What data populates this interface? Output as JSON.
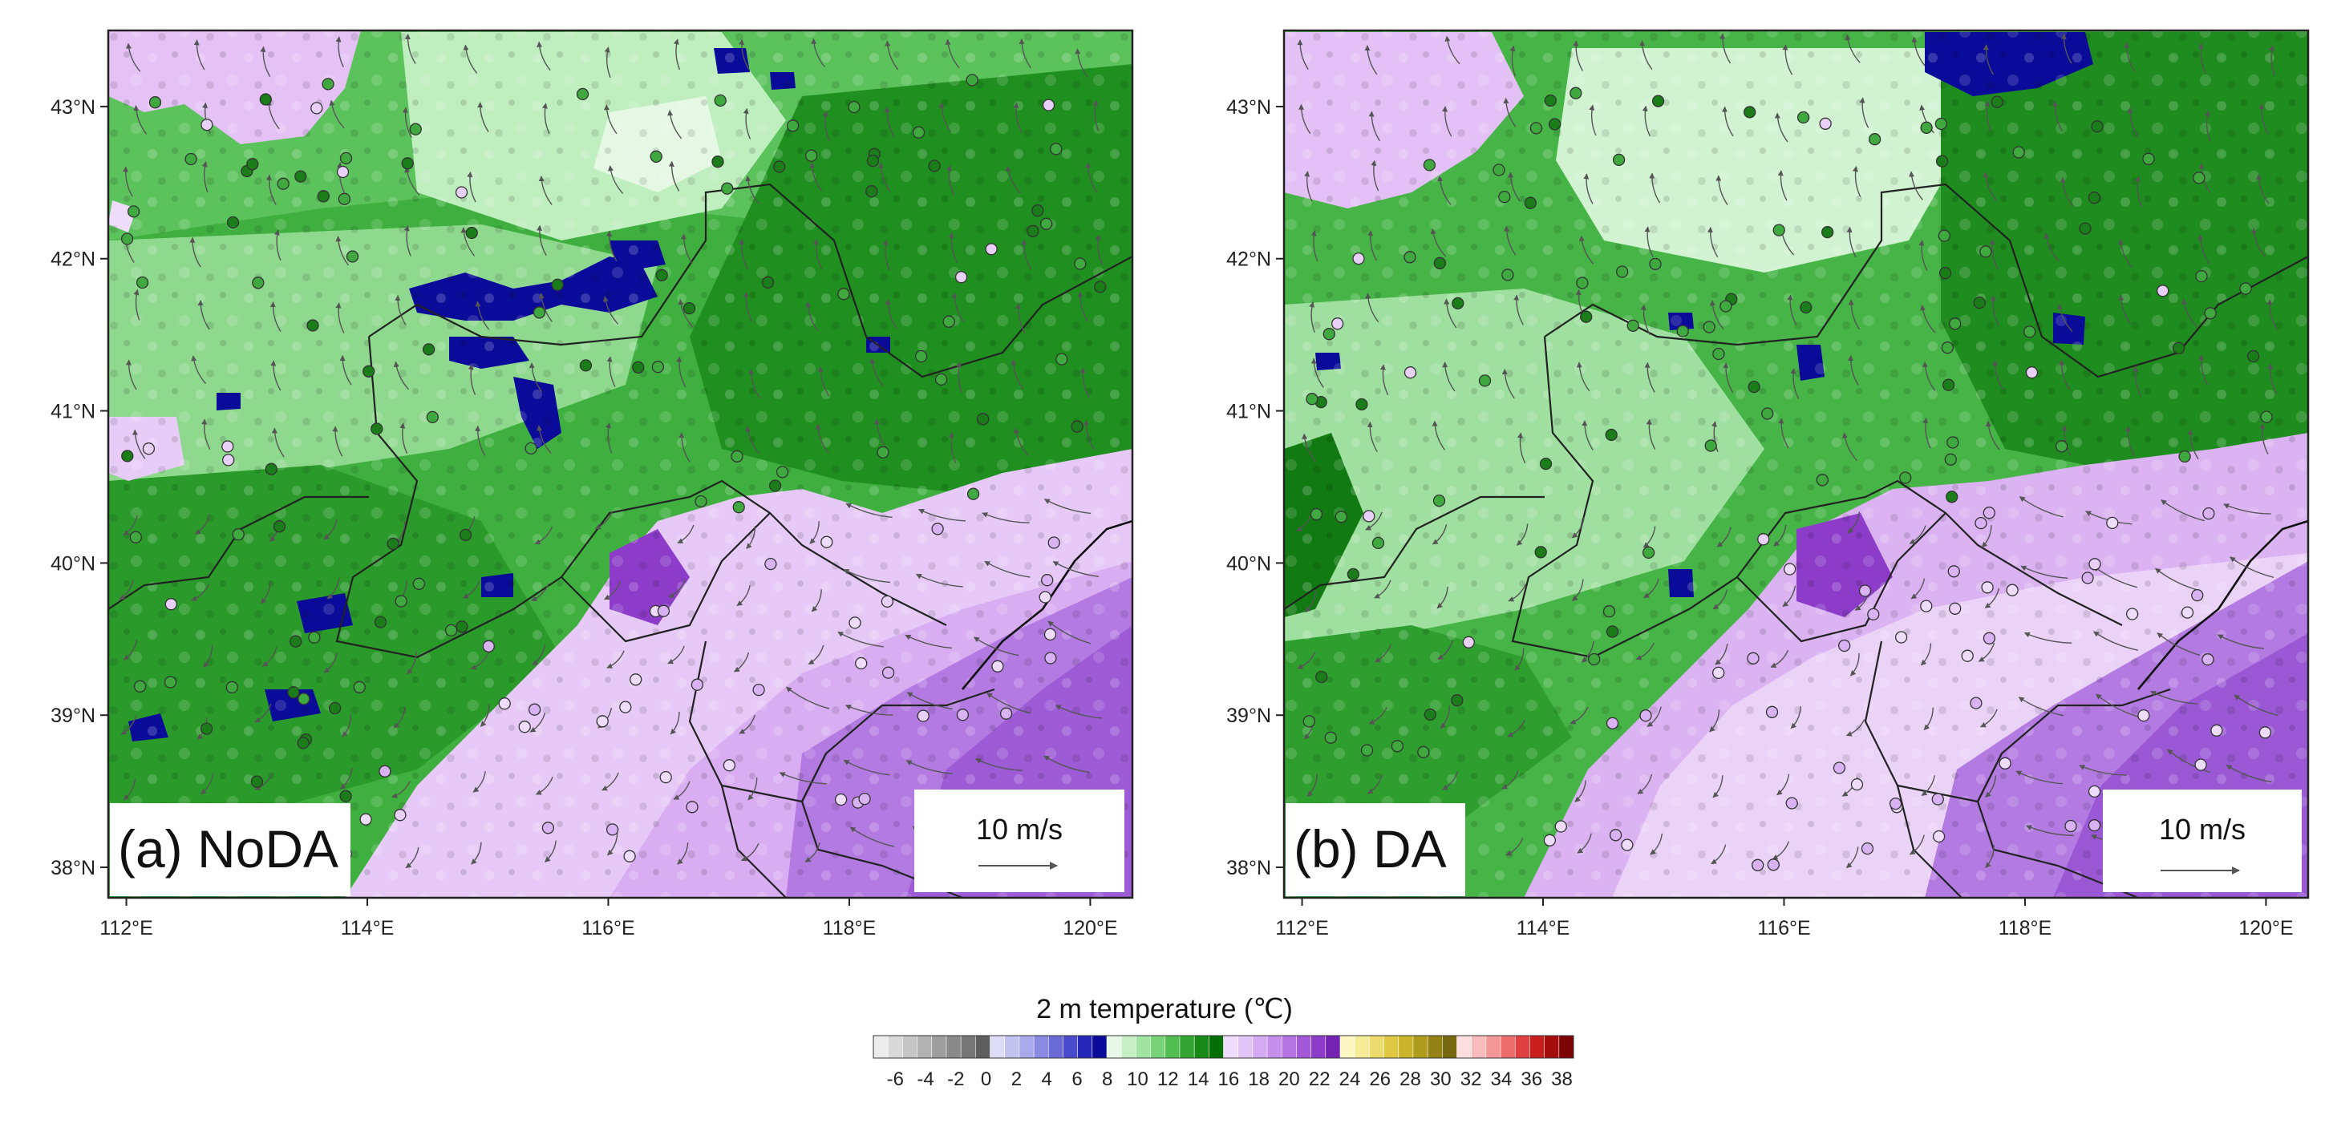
{
  "panels": [
    {
      "id": "a",
      "label": "(a) NoDA",
      "scale_label": "10 m/s"
    },
    {
      "id": "b",
      "label": "(b) DA",
      "scale_label": "10 m/s"
    }
  ],
  "map": {
    "lat_labels": [
      "43°N",
      "42°N",
      "41°N",
      "40°N",
      "39°N",
      "38°N"
    ],
    "lon_labels": [
      "112°E",
      "114°E",
      "116°E",
      "118°E",
      "120°E"
    ],
    "lat_values": [
      43,
      42,
      41,
      40,
      39,
      38
    ],
    "lon_values": [
      112,
      114,
      116,
      118,
      120
    ],
    "lat_range": [
      37.8,
      43.5
    ],
    "lon_range": [
      111.85,
      120.35
    ]
  },
  "colorbar": {
    "title": "2 m temperature (℃)",
    "tick_labels": [
      "-6",
      "-4",
      "-2",
      "0",
      "2",
      "4",
      "6",
      "8",
      "10",
      "12",
      "14",
      "16",
      "18",
      "20",
      "22",
      "24",
      "26",
      "28",
      "30",
      "32",
      "34",
      "36",
      "38"
    ],
    "colors": [
      "#ececec",
      "#d9d9d9",
      "#c6c6c6",
      "#b2b2b2",
      "#9e9e9e",
      "#8a8a8a",
      "#767676",
      "#5e5e5e",
      "#dcdcf6",
      "#c3c3f0",
      "#a8a8ea",
      "#8a8ae2",
      "#6b6bd8",
      "#4a4acc",
      "#2626b8",
      "#0b0b9a",
      "#e8f8e8",
      "#c6efc6",
      "#a1e3a1",
      "#78d378",
      "#52be52",
      "#32a432",
      "#178a17",
      "#066e06",
      "#efdcfb",
      "#e2c4f7",
      "#d4aaf2",
      "#c590ec",
      "#b474e3",
      "#a258d8",
      "#8c3cc9",
      "#7422b2",
      "#fdf7c2",
      "#f6ec98",
      "#ecdc6c",
      "#dec844",
      "#cab52a",
      "#b09c1c",
      "#948214",
      "#76680e",
      "#fcdede",
      "#f8bcbc",
      "#f39696",
      "#ec6c6c",
      "#e04040",
      "#c81e1e",
      "#a40c0c",
      "#7c0404"
    ]
  }
}
